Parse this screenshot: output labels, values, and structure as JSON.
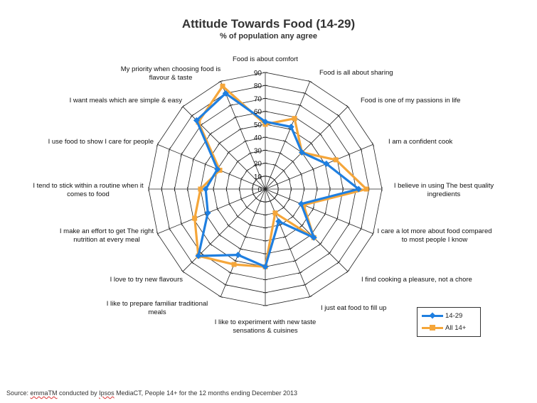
{
  "chart_data": {
    "type": "radar",
    "title": "Attitude Towards Food (14-29)",
    "subtitle": "% of population any agree",
    "rlim": [
      0,
      90
    ],
    "ticks": [
      0,
      10,
      20,
      30,
      40,
      50,
      60,
      70,
      80,
      90
    ],
    "categories": [
      "Food is about comfort",
      "Food is all about sharing",
      "Food is one of my passions in life",
      "I am a confident cook",
      "I believe in using The best quality ingredients",
      "I care a lot more about food compared to most people I know",
      "I find cooking a pleasure, not a chore",
      "I just eat food to fill up",
      "I like to experiment with new taste sensations & cuisines",
      "I like to prepare familiar traditional meals",
      "I love to try new flavours",
      "I make an effort to get The right nutrition at every meal",
      "I tend to stick within a routine when it comes to food",
      "I use food to show I care for people",
      "I want meals which are simple & easy",
      "My priority when choosing food is flavour & taste"
    ],
    "series": [
      {
        "name": "14-29",
        "color": "#1f7fe0",
        "values": [
          52,
          52,
          40,
          51,
          72,
          30,
          53,
          27,
          60,
          55,
          73,
          48,
          46,
          40,
          75,
          80
        ]
      },
      {
        "name": "All 14+",
        "color": "#f5a63a",
        "values": [
          50,
          59,
          40,
          59,
          78,
          32,
          53,
          20,
          60,
          63,
          73,
          59,
          50,
          38,
          73,
          86
        ]
      }
    ]
  },
  "source": {
    "prefix": "Source: ",
    "brand": "emmaTM",
    "middle": " conducted by ",
    "company": "Ipsos",
    "suffix": " MediaCT, People 14+ for the 12 months ending December 2013"
  }
}
